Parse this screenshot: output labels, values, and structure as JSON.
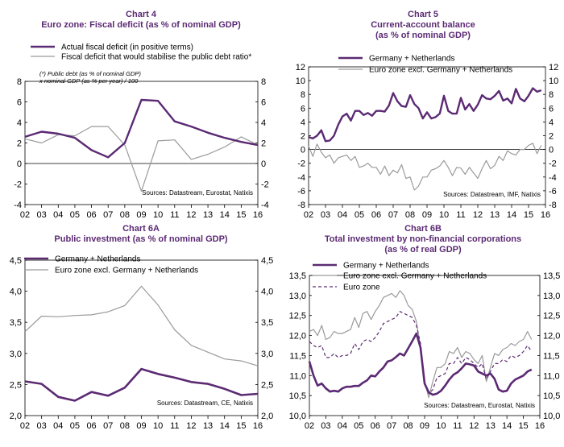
{
  "colors": {
    "purple": "#5b2a73",
    "gray": "#9a9a9a",
    "title": "#5b2a73"
  },
  "chart_data": [
    {
      "id": "c4",
      "type": "line",
      "title_line1": "Chart 4",
      "title_line2": "Euro zone: Fiscal deficit (as % of nominal GDP)",
      "ylim": [
        -4,
        8
      ],
      "yticks": [
        "8",
        "6",
        "4",
        "2",
        "0",
        "-2",
        "-4"
      ],
      "ytick_values": [
        8,
        6,
        4,
        2,
        0,
        -2,
        -4
      ],
      "xlim": [
        2002,
        2016
      ],
      "xticks": [
        "02",
        "03",
        "04",
        "05",
        "06",
        "07",
        "08",
        "09",
        "10",
        "11",
        "12",
        "13",
        "14",
        "15",
        "16"
      ],
      "note": "(*) Public debt (as % of nominal GDP) x nominal GDP (as % per year) / 100",
      "source": "Sources: Datastream, Eurostat, Natixis",
      "grid": "zero line",
      "legend_placement": "top",
      "series": [
        {
          "name": "Actual fiscal deficit (in positive terms)",
          "color": "#5b2a73",
          "width": 2.4,
          "x": [
            2002,
            2003,
            2004,
            2005,
            2006,
            2007,
            2008,
            2009,
            2010,
            2011,
            2012,
            2013,
            2014,
            2015,
            2016
          ],
          "y": [
            2.6,
            3.1,
            2.9,
            2.5,
            1.3,
            0.6,
            2.0,
            6.2,
            6.1,
            4.1,
            3.6,
            3.0,
            2.5,
            2.1,
            1.8
          ]
        },
        {
          "name": "Fiscal deficit that would stabilise the public debt ratio*",
          "color": "#9a9a9a",
          "width": 1.2,
          "x": [
            2002,
            2003,
            2004,
            2005,
            2006,
            2007,
            2008,
            2009,
            2010,
            2011,
            2012,
            2013,
            2014,
            2015,
            2016
          ],
          "y": [
            2.4,
            2.0,
            2.8,
            2.7,
            3.6,
            3.6,
            1.8,
            -2.7,
            2.2,
            2.3,
            0.4,
            0.9,
            1.6,
            2.6,
            1.8
          ]
        }
      ]
    },
    {
      "id": "c5",
      "type": "line",
      "title_line1": "Chart 5",
      "title_line2": "Current-account balance",
      "title_line3": "(as % of nominal GDP)",
      "ylim": [
        -8,
        12
      ],
      "yticks": [
        "12",
        "10",
        "8",
        "6",
        "4",
        "2",
        "0",
        "-2",
        "-4",
        "-6",
        "-8"
      ],
      "ytick_values": [
        12,
        10,
        8,
        6,
        4,
        2,
        0,
        -2,
        -4,
        -6,
        -8
      ],
      "xlim": [
        2002,
        2016
      ],
      "xticks": [
        "02",
        "03",
        "04",
        "05",
        "06",
        "07",
        "08",
        "09",
        "10",
        "11",
        "12",
        "13",
        "14",
        "15",
        "16"
      ],
      "source": "Sources: Datastream, IMF, Natixis",
      "grid": "zero line",
      "legend_placement": "top",
      "series": [
        {
          "name": "Germany + Netherlands",
          "color": "#5b2a73",
          "width": 2.4,
          "x": [
            2002,
            2002.25,
            2002.5,
            2002.75,
            2003,
            2003.25,
            2003.5,
            2003.75,
            2004,
            2004.25,
            2004.5,
            2004.75,
            2005,
            2005.25,
            2005.5,
            2005.75,
            2006,
            2006.25,
            2006.5,
            2006.75,
            2007,
            2007.25,
            2007.5,
            2007.75,
            2008,
            2008.25,
            2008.5,
            2008.75,
            2009,
            2009.25,
            2009.5,
            2009.75,
            2010,
            2010.25,
            2010.5,
            2010.75,
            2011,
            2011.25,
            2011.5,
            2011.75,
            2012,
            2012.25,
            2012.5,
            2012.75,
            2013,
            2013.25,
            2013.5,
            2013.75,
            2014,
            2014.25,
            2014.5,
            2014.75,
            2015,
            2015.25,
            2015.5,
            2015.75
          ],
          "y": [
            1.8,
            1.6,
            2.0,
            2.8,
            1.2,
            1.3,
            2.0,
            3.6,
            4.8,
            5.2,
            4.2,
            5.6,
            5.6,
            5.0,
            5.3,
            4.9,
            5.6,
            5.6,
            5.5,
            6.4,
            8.2,
            7.0,
            6.3,
            6.2,
            7.9,
            6.6,
            6.0,
            4.5,
            5.4,
            4.5,
            4.7,
            5.2,
            7.8,
            5.6,
            5.2,
            5.2,
            7.5,
            5.8,
            6.6,
            5.6,
            6.5,
            7.9,
            7.4,
            7.3,
            7.8,
            8.5,
            7.1,
            7.4,
            6.7,
            8.8,
            7.4,
            7.0,
            7.8,
            8.9,
            8.4,
            8.6
          ]
        },
        {
          "name": "Euro zone excl. Germany + Netherlands",
          "color": "#9a9a9a",
          "width": 1.2,
          "x": [
            2002,
            2002.25,
            2002.5,
            2002.75,
            2003,
            2003.25,
            2003.5,
            2003.75,
            2004,
            2004.25,
            2004.5,
            2004.75,
            2005,
            2005.25,
            2005.5,
            2005.75,
            2006,
            2006.25,
            2006.5,
            2006.75,
            2007,
            2007.25,
            2007.5,
            2007.75,
            2008,
            2008.25,
            2008.5,
            2008.75,
            2009,
            2009.25,
            2009.5,
            2009.75,
            2010,
            2010.25,
            2010.5,
            2010.75,
            2011,
            2011.25,
            2011.5,
            2011.75,
            2012,
            2012.25,
            2012.5,
            2012.75,
            2013,
            2013.25,
            2013.5,
            2013.75,
            2014,
            2014.25,
            2014.5,
            2014.75,
            2015,
            2015.25,
            2015.5,
            2015.75
          ],
          "y": [
            0.5,
            -1.0,
            0.8,
            -0.4,
            -1.2,
            -0.8,
            -2.0,
            -1.2,
            -1.0,
            -0.8,
            -1.6,
            -1.0,
            -2.6,
            -2.4,
            -2.0,
            -2.6,
            -2.6,
            -3.6,
            -2.4,
            -3.8,
            -3.0,
            -3.4,
            -2.2,
            -4.2,
            -4.0,
            -5.9,
            -5.3,
            -4.0,
            -4.0,
            -3.0,
            -2.8,
            -2.4,
            -1.6,
            -2.6,
            -3.8,
            -2.6,
            -2.7,
            -3.6,
            -2.6,
            -3.4,
            -4.2,
            -2.8,
            -1.6,
            -2.8,
            -2.3,
            -1.0,
            -1.6,
            -0.2,
            -0.6,
            -0.8,
            0.0,
            0.0,
            0.6,
            0.9,
            -0.6,
            0.6
          ]
        }
      ]
    },
    {
      "id": "c6a",
      "type": "line",
      "title_line1": "Chart 6A",
      "title_line2": "Public investment (as % of nominal GDP)",
      "ylim": [
        2.0,
        4.5
      ],
      "yticks": [
        "4,5",
        "4,0",
        "3,5",
        "3,0",
        "2,5",
        "2,0"
      ],
      "ytick_values": [
        4.5,
        4.0,
        3.5,
        3.0,
        2.5,
        2.0
      ],
      "xlim": [
        2002,
        2016
      ],
      "xticks": [
        "02",
        "03",
        "04",
        "05",
        "06",
        "07",
        "08",
        "09",
        "10",
        "11",
        "12",
        "13",
        "14",
        "15",
        "16"
      ],
      "source": "Sources: Datastream, CE, Natixis",
      "grid": "none",
      "legend_placement": "top",
      "series": [
        {
          "name": "Germany + Netherlands",
          "color": "#5b2a73",
          "width": 2.6,
          "x": [
            2002,
            2003,
            2004,
            2005,
            2006,
            2007,
            2008,
            2009,
            2010,
            2011,
            2012,
            2013,
            2014,
            2015,
            2016
          ],
          "y": [
            2.55,
            2.51,
            2.3,
            2.24,
            2.38,
            2.32,
            2.45,
            2.75,
            2.67,
            2.61,
            2.54,
            2.51,
            2.43,
            2.33,
            2.35
          ]
        },
        {
          "name": "Euro zone excl. Germany + Netherlands",
          "color": "#9a9a9a",
          "width": 1.2,
          "x": [
            2002,
            2003,
            2004,
            2005,
            2006,
            2007,
            2008,
            2009,
            2010,
            2011,
            2012,
            2013,
            2014,
            2015,
            2016
          ],
          "y": [
            3.35,
            3.6,
            3.59,
            3.61,
            3.62,
            3.67,
            3.77,
            4.08,
            3.78,
            3.38,
            3.13,
            3.02,
            2.91,
            2.88,
            2.8
          ]
        }
      ]
    },
    {
      "id": "c6b",
      "type": "line",
      "title_line1": "Chart 6B",
      "title_line2": "Total investment by non-financial corporations",
      "title_line3": "(as % of real GDP)",
      "ylim": [
        10.0,
        13.5
      ],
      "yticks": [
        "13,5",
        "13,0",
        "12,5",
        "12,0",
        "11,5",
        "11,0",
        "10,5",
        "10,0"
      ],
      "ytick_values": [
        13.5,
        13.0,
        12.5,
        12.0,
        11.5,
        11.0,
        10.5,
        10.0
      ],
      "xlim": [
        2002,
        2016
      ],
      "xticks": [
        "02",
        "03",
        "04",
        "05",
        "06",
        "07",
        "08",
        "09",
        "10",
        "11",
        "12",
        "13",
        "14",
        "15",
        "16"
      ],
      "source": "Sources: Datastream, Eurostat, Natixis",
      "grid": "none",
      "legend_placement": "top",
      "series": [
        {
          "name": "Germany + Netherlands",
          "color": "#5b2a73",
          "width": 2.6,
          "dash": "",
          "x": [
            2002,
            2002.25,
            2002.5,
            2002.75,
            2003,
            2003.25,
            2003.5,
            2003.75,
            2004,
            2004.25,
            2004.5,
            2004.75,
            2005,
            2005.25,
            2005.5,
            2005.75,
            2006,
            2006.25,
            2006.5,
            2006.75,
            2007,
            2007.25,
            2007.5,
            2007.75,
            2008,
            2008.25,
            2008.5,
            2008.75,
            2009,
            2009.25,
            2009.5,
            2009.75,
            2010,
            2010.25,
            2010.5,
            2010.75,
            2011,
            2011.25,
            2011.5,
            2011.75,
            2012,
            2012.25,
            2012.5,
            2012.75,
            2013,
            2013.25,
            2013.5,
            2013.75,
            2014,
            2014.25,
            2014.5,
            2014.75,
            2015,
            2015.25,
            2015.5
          ],
          "y": [
            11.35,
            11.0,
            10.75,
            10.8,
            10.68,
            10.6,
            10.62,
            10.6,
            10.68,
            10.72,
            10.72,
            10.74,
            10.74,
            10.82,
            10.88,
            11.0,
            10.98,
            11.1,
            11.2,
            11.35,
            11.38,
            11.46,
            11.55,
            11.5,
            11.68,
            11.86,
            12.05,
            11.7,
            10.8,
            10.58,
            10.52,
            10.55,
            10.62,
            10.75,
            10.9,
            11.02,
            11.08,
            11.18,
            11.3,
            11.28,
            11.25,
            11.1,
            11.05,
            11.0,
            11.05,
            10.92,
            10.65,
            10.6,
            10.62,
            10.8,
            10.9,
            10.95,
            11.0,
            11.1,
            11.15
          ]
        },
        {
          "name": "Euro zone excl. Germany + Netherlands",
          "color": "#9a9a9a",
          "width": 1.2,
          "dash": "",
          "x": [
            2002,
            2002.25,
            2002.5,
            2002.75,
            2003,
            2003.25,
            2003.5,
            2003.75,
            2004,
            2004.25,
            2004.5,
            2004.75,
            2005,
            2005.25,
            2005.5,
            2005.75,
            2006,
            2006.25,
            2006.5,
            2006.75,
            2007,
            2007.25,
            2007.5,
            2007.75,
            2008,
            2008.25,
            2008.5,
            2008.75,
            2009,
            2009.25,
            2009.5,
            2009.75,
            2010,
            2010.25,
            2010.5,
            2010.75,
            2011,
            2011.25,
            2011.5,
            2011.75,
            2012,
            2012.25,
            2012.5,
            2012.75,
            2013,
            2013.25,
            2013.5,
            2013.75,
            2014,
            2014.25,
            2014.5,
            2014.75,
            2015,
            2015.25,
            2015.5
          ],
          "y": [
            12.1,
            12.15,
            12.0,
            12.25,
            11.9,
            11.95,
            12.1,
            12.05,
            12.05,
            12.1,
            12.15,
            12.45,
            12.2,
            12.55,
            12.6,
            12.4,
            12.6,
            12.75,
            12.95,
            13.0,
            13.05,
            12.95,
            13.12,
            13.0,
            12.75,
            12.65,
            12.35,
            11.7,
            10.85,
            10.45,
            10.85,
            11.2,
            11.2,
            11.3,
            11.6,
            11.55,
            11.7,
            11.45,
            11.6,
            11.55,
            11.4,
            11.3,
            11.5,
            10.85,
            11.2,
            11.55,
            11.5,
            11.65,
            11.7,
            11.8,
            11.75,
            11.85,
            11.9,
            12.1,
            11.9
          ]
        },
        {
          "name": "Euro zone",
          "color": "#5b2a73",
          "width": 1.2,
          "dash": "4,3",
          "x": [
            2002,
            2002.25,
            2002.5,
            2002.75,
            2003,
            2003.25,
            2003.5,
            2003.75,
            2004,
            2004.25,
            2004.5,
            2004.75,
            2005,
            2005.25,
            2005.5,
            2005.75,
            2006,
            2006.25,
            2006.5,
            2006.75,
            2007,
            2007.25,
            2007.5,
            2007.75,
            2008,
            2008.25,
            2008.5,
            2008.75,
            2009,
            2009.25,
            2009.5,
            2009.75,
            2010,
            2010.25,
            2010.5,
            2010.75,
            2011,
            2011.25,
            2011.5,
            2011.75,
            2012,
            2012.25,
            2012.5,
            2012.75,
            2013,
            2013.25,
            2013.5,
            2013.75,
            2014,
            2014.25,
            2014.5,
            2014.75,
            2015,
            2015.25,
            2015.5
          ],
          "y": [
            11.85,
            11.75,
            11.7,
            11.75,
            11.45,
            11.45,
            11.55,
            11.45,
            11.5,
            11.5,
            11.55,
            11.8,
            11.65,
            11.85,
            11.9,
            11.85,
            11.95,
            12.1,
            12.3,
            12.35,
            12.4,
            12.45,
            12.6,
            12.55,
            12.5,
            12.45,
            12.25,
            11.8,
            10.8,
            10.55,
            10.65,
            10.95,
            11.0,
            11.05,
            11.3,
            11.3,
            11.45,
            11.3,
            11.45,
            11.4,
            11.3,
            11.2,
            11.3,
            10.9,
            11.1,
            11.3,
            11.3,
            11.4,
            11.35,
            11.5,
            11.45,
            11.5,
            11.6,
            11.75,
            11.6
          ]
        }
      ]
    }
  ]
}
